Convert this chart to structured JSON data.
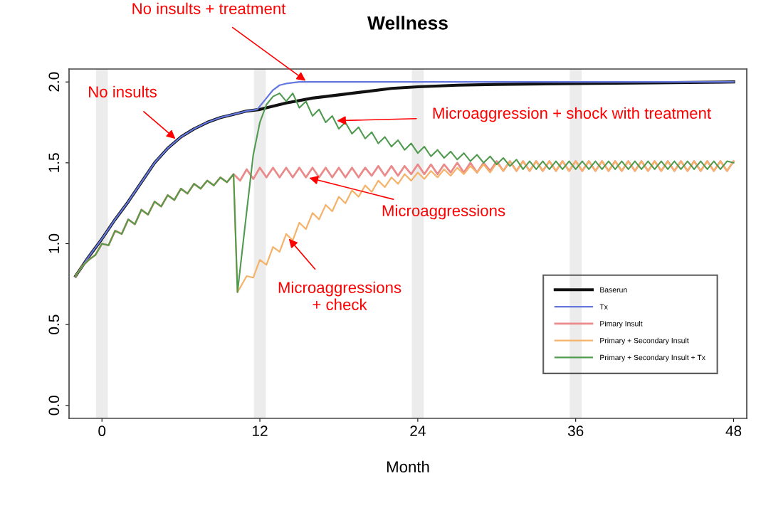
{
  "chart_data": {
    "type": "line",
    "title": "Wellness",
    "xlabel": "Month",
    "xlim": [
      -2.5,
      49
    ],
    "xticks": [
      0,
      12,
      24,
      36,
      48
    ],
    "ylim": [
      -0.08,
      2.08
    ],
    "yticks": [
      {
        "value": 0,
        "label": "0.0"
      },
      0.5,
      {
        "value": 1,
        "label": "1.0"
      },
      1.5,
      {
        "value": 2,
        "label": "2.0"
      }
    ],
    "grid": false,
    "legend": "bottom right",
    "ref_lines": [
      {
        "axis": "x",
        "value": 0,
        "color": "#ececec"
      },
      {
        "axis": "x",
        "value": 12,
        "color": "#ececec"
      },
      {
        "axis": "x",
        "value": 24,
        "color": "#ececec"
      },
      {
        "axis": "x",
        "value": 36,
        "color": "#ececec"
      }
    ],
    "series": [
      {
        "name": "Baserun",
        "color": "#111111",
        "x": [
          -2,
          -1,
          0,
          1,
          2,
          3,
          4,
          5,
          6,
          7,
          8,
          9,
          10,
          11,
          12,
          14,
          16,
          18,
          20,
          22,
          24,
          27,
          30,
          36,
          42,
          48
        ],
        "values": [
          0.8,
          0.92,
          1.03,
          1.15,
          1.26,
          1.38,
          1.5,
          1.59,
          1.66,
          1.71,
          1.75,
          1.78,
          1.8,
          1.82,
          1.83,
          1.87,
          1.9,
          1.92,
          1.94,
          1.96,
          1.97,
          1.98,
          1.985,
          1.99,
          1.995,
          2.0
        ]
      },
      {
        "name": "Tx",
        "color": "#6478e0",
        "x": [
          -2,
          -1,
          0,
          1,
          2,
          3,
          4,
          5,
          6,
          7,
          8,
          9,
          10,
          11,
          11.8,
          12.5,
          13,
          13.5,
          14,
          15,
          20,
          30,
          40,
          48
        ],
        "values": [
          0.8,
          0.92,
          1.03,
          1.15,
          1.26,
          1.38,
          1.5,
          1.59,
          1.66,
          1.71,
          1.75,
          1.78,
          1.8,
          1.82,
          1.83,
          1.9,
          1.95,
          1.98,
          1.99,
          2.0,
          2.0,
          2.0,
          2.0,
          2.0
        ]
      },
      {
        "name": "Pimary Insult",
        "color": "#ea8a8a",
        "x": [
          -2,
          -1.5,
          -1,
          -0.5,
          0,
          0.5,
          1,
          1.5,
          2,
          2.5,
          3,
          3.5,
          4,
          4.5,
          5,
          5.5,
          6,
          6.5,
          7,
          7.5,
          8,
          8.5,
          9,
          9.5,
          10,
          10.5,
          11,
          11.5,
          12,
          12.5,
          13,
          13.5,
          14,
          14.5,
          15,
          15.5,
          16,
          16.5,
          17,
          17.5,
          18,
          18.5,
          19,
          19.5,
          20,
          20.5,
          21,
          21.5,
          22,
          22.5,
          23,
          23.5,
          24,
          24.5,
          25,
          25.5,
          26,
          26.5,
          27,
          27.5,
          28,
          28.5,
          29,
          29.5,
          30,
          30.5,
          31,
          31.5,
          32,
          32.5,
          33,
          33.5,
          34,
          34.5,
          35,
          35.5,
          36,
          36.5,
          37,
          37.5,
          38,
          38.5,
          39,
          39.5,
          40,
          40.5,
          41,
          41.5,
          42,
          42.5,
          43,
          43.5,
          44,
          44.5,
          45,
          45.5,
          46,
          46.5,
          47,
          47.5,
          48
        ],
        "values": [
          0.8,
          0.86,
          0.9,
          0.93,
          1.0,
          0.99,
          1.08,
          1.06,
          1.15,
          1.12,
          1.21,
          1.18,
          1.26,
          1.23,
          1.3,
          1.27,
          1.34,
          1.31,
          1.37,
          1.34,
          1.39,
          1.36,
          1.41,
          1.38,
          1.43,
          1.39,
          1.46,
          1.4,
          1.47,
          1.41,
          1.47,
          1.41,
          1.47,
          1.41,
          1.47,
          1.41,
          1.47,
          1.41,
          1.47,
          1.41,
          1.47,
          1.41,
          1.47,
          1.41,
          1.47,
          1.42,
          1.48,
          1.42,
          1.48,
          1.42,
          1.48,
          1.43,
          1.49,
          1.43,
          1.49,
          1.43,
          1.49,
          1.44,
          1.5,
          1.44,
          1.5,
          1.44,
          1.5,
          1.45,
          1.51,
          1.45,
          1.51,
          1.45,
          1.51,
          1.45,
          1.51,
          1.45,
          1.51,
          1.45,
          1.51,
          1.45,
          1.51,
          1.45,
          1.51,
          1.45,
          1.51,
          1.45,
          1.51,
          1.45,
          1.51,
          1.45,
          1.51,
          1.45,
          1.51,
          1.45,
          1.51,
          1.45,
          1.51,
          1.45,
          1.51,
          1.45,
          1.51,
          1.45,
          1.51,
          1.45,
          1.51
        ]
      },
      {
        "name": "Primary + Secondary Insult",
        "color": "#f5b36a",
        "x": [
          -2,
          -1.5,
          -1,
          -0.5,
          0,
          0.5,
          1,
          1.5,
          2,
          2.5,
          3,
          3.5,
          4,
          4.5,
          5,
          5.5,
          6,
          6.5,
          7,
          7.5,
          8,
          8.5,
          9,
          9.5,
          10,
          10.3,
          11,
          11.5,
          12,
          12.5,
          13,
          13.5,
          14,
          14.5,
          15,
          15.5,
          16,
          16.5,
          17,
          17.5,
          18,
          18.5,
          19,
          19.5,
          20,
          20.5,
          21,
          21.5,
          22,
          22.5,
          23,
          23.5,
          24,
          24.5,
          25,
          25.5,
          26,
          26.5,
          27,
          27.5,
          28,
          28.5,
          29,
          29.5,
          30,
          30.5,
          31,
          31.5,
          32,
          32.5,
          33,
          33.5,
          34,
          34.5,
          35,
          35.5,
          36,
          36.5,
          37,
          37.5,
          38,
          38.5,
          39,
          39.5,
          40,
          40.5,
          41,
          41.5,
          42,
          42.5,
          43,
          43.5,
          44,
          44.5,
          45,
          45.5,
          46,
          46.5,
          47,
          47.5,
          48
        ],
        "values": [
          0.8,
          0.86,
          0.9,
          0.93,
          1.0,
          0.99,
          1.08,
          1.06,
          1.15,
          1.12,
          1.21,
          1.18,
          1.26,
          1.23,
          1.3,
          1.27,
          1.34,
          1.31,
          1.37,
          1.34,
          1.39,
          1.36,
          1.41,
          1.38,
          1.43,
          0.7,
          0.8,
          0.79,
          0.9,
          0.87,
          0.98,
          0.95,
          1.06,
          1.02,
          1.13,
          1.09,
          1.19,
          1.15,
          1.24,
          1.2,
          1.29,
          1.25,
          1.33,
          1.29,
          1.36,
          1.32,
          1.39,
          1.35,
          1.41,
          1.37,
          1.43,
          1.39,
          1.44,
          1.4,
          1.45,
          1.41,
          1.46,
          1.42,
          1.47,
          1.43,
          1.48,
          1.44,
          1.49,
          1.44,
          1.5,
          1.45,
          1.51,
          1.45,
          1.51,
          1.45,
          1.51,
          1.45,
          1.51,
          1.45,
          1.51,
          1.45,
          1.51,
          1.45,
          1.51,
          1.45,
          1.51,
          1.45,
          1.51,
          1.45,
          1.51,
          1.45,
          1.51,
          1.45,
          1.51,
          1.45,
          1.51,
          1.45,
          1.51,
          1.45,
          1.51,
          1.45,
          1.51,
          1.45,
          1.51,
          1.45,
          1.51
        ]
      },
      {
        "name": "Primary + Secondary Insult + Tx",
        "color": "#4f9a4f",
        "x": [
          -2,
          -1.5,
          -1,
          -0.5,
          0,
          0.5,
          1,
          1.5,
          2,
          2.5,
          3,
          3.5,
          4,
          4.5,
          5,
          5.5,
          6,
          6.5,
          7,
          7.5,
          8,
          8.5,
          9,
          9.5,
          10,
          10.3,
          11,
          11.5,
          12,
          12.5,
          13,
          13.5,
          14,
          14.5,
          15,
          15.5,
          16,
          16.5,
          17,
          17.5,
          18,
          18.5,
          19,
          19.5,
          20,
          20.5,
          21,
          21.5,
          22,
          22.5,
          23,
          23.5,
          24,
          24.5,
          25,
          25.5,
          26,
          26.5,
          27,
          27.5,
          28,
          28.5,
          29,
          29.5,
          30,
          30.5,
          31,
          31.5,
          32,
          32.5,
          33,
          33.5,
          34,
          34.5,
          35,
          35.5,
          36,
          36.5,
          37,
          37.5,
          38,
          38.5,
          39,
          39.5,
          40,
          40.5,
          41,
          41.5,
          42,
          42.5,
          43,
          43.5,
          44,
          44.5,
          45,
          45.5,
          46,
          46.5,
          47,
          47.5,
          48
        ],
        "values": [
          0.8,
          0.86,
          0.9,
          0.93,
          1.0,
          0.99,
          1.08,
          1.06,
          1.15,
          1.12,
          1.21,
          1.18,
          1.26,
          1.23,
          1.3,
          1.27,
          1.34,
          1.31,
          1.37,
          1.34,
          1.39,
          1.36,
          1.41,
          1.38,
          1.43,
          0.7,
          1.2,
          1.55,
          1.75,
          1.86,
          1.91,
          1.93,
          1.88,
          1.93,
          1.84,
          1.88,
          1.79,
          1.83,
          1.75,
          1.79,
          1.71,
          1.75,
          1.68,
          1.72,
          1.65,
          1.69,
          1.62,
          1.66,
          1.6,
          1.64,
          1.58,
          1.62,
          1.56,
          1.6,
          1.54,
          1.58,
          1.53,
          1.57,
          1.52,
          1.56,
          1.51,
          1.55,
          1.5,
          1.54,
          1.49,
          1.53,
          1.48,
          1.52,
          1.46,
          1.51,
          1.46,
          1.51,
          1.46,
          1.51,
          1.46,
          1.51,
          1.46,
          1.51,
          1.46,
          1.51,
          1.46,
          1.51,
          1.46,
          1.51,
          1.46,
          1.51,
          1.46,
          1.51,
          1.46,
          1.51,
          1.46,
          1.51,
          1.46,
          1.51,
          1.46,
          1.51,
          1.46,
          1.51,
          1.46,
          1.51,
          1.5
        ]
      }
    ],
    "annotations": [
      {
        "text": "No insults + treatment",
        "x": 15.6,
        "y": 2.0
      },
      {
        "text": "No insults",
        "x": 5.7,
        "y": 1.64
      },
      {
        "text": "Microaggression + shock with treatment",
        "x": 17.7,
        "y": 1.76
      },
      {
        "text": "Microaggressions",
        "x": 15.6,
        "y": 1.41
      },
      {
        "text": "Microaggressions\n+ check",
        "x": 14.1,
        "y": 1.04
      }
    ]
  }
}
